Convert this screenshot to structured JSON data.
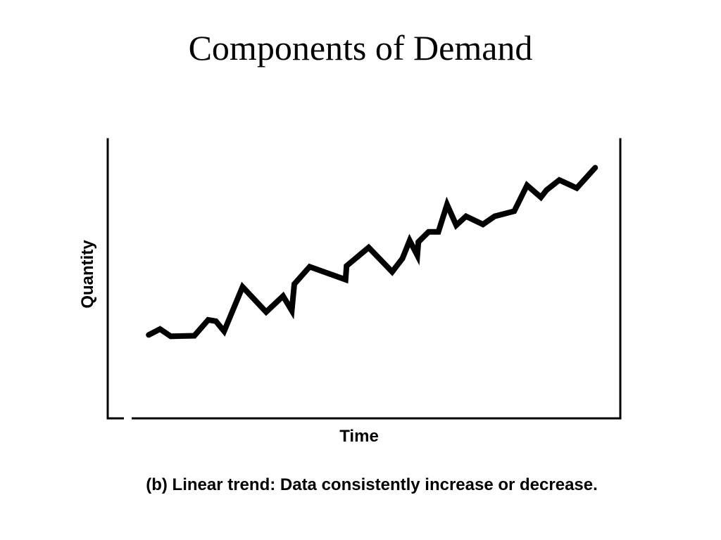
{
  "slide": {
    "title": "Components of Demand",
    "caption": "(b) Linear trend: Data consistently increase or decrease."
  },
  "chart_data": {
    "type": "line",
    "title": "",
    "xlabel": "Time",
    "ylabel": "Quantity",
    "xlim": [
      0,
      100
    ],
    "ylim": [
      0,
      100
    ],
    "grid": false,
    "legend": "none",
    "line_color": "#000000",
    "x": [
      8,
      10.2,
      12.3,
      16.9,
      19.6,
      21.1,
      22.7,
      26.3,
      30.9,
      34.2,
      35.9,
      36.4,
      39.4,
      46.4,
      46.6,
      50.9,
      55.5,
      57.5,
      58.9,
      60.4,
      60.6,
      62.6,
      64.5,
      66.2,
      68,
      69.9,
      73.2,
      75.5,
      79.3,
      81.8,
      84.5,
      85.6,
      88.1,
      91.5,
      95.1
    ],
    "y": [
      29.9,
      32,
      29.4,
      29.6,
      35.3,
      34.8,
      31.2,
      47.1,
      38.1,
      43.8,
      38.6,
      48.1,
      54.3,
      49.7,
      54.6,
      61.2,
      52.5,
      57.3,
      63.7,
      58.4,
      63.2,
      66.8,
      66.8,
      76.6,
      69.2,
      72.4,
      69.5,
      72.4,
      74.2,
      83.5,
      79.2,
      81.8,
      85.4,
      82.5,
      89.8
    ]
  }
}
